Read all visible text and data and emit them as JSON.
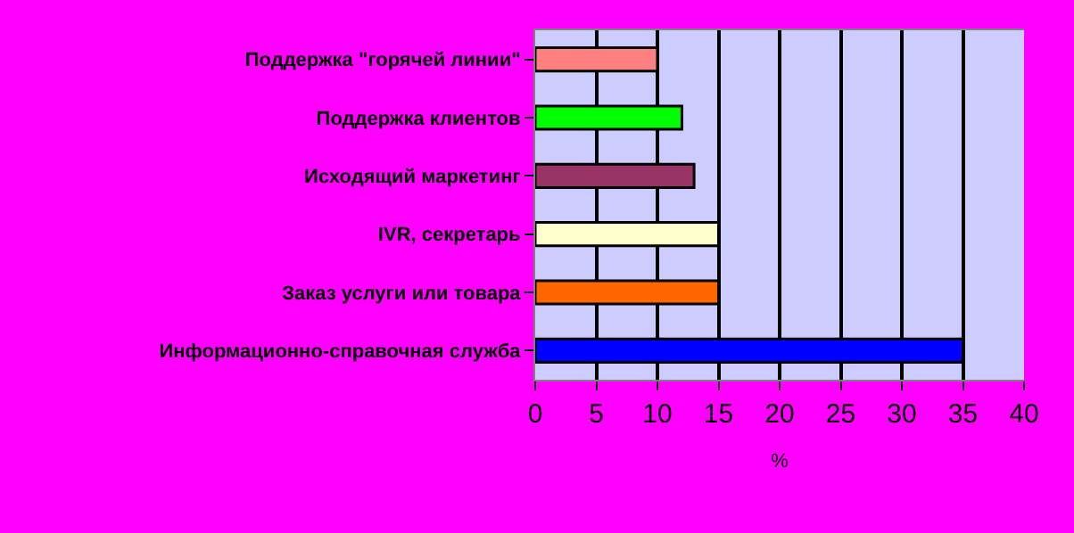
{
  "chart_data": {
    "type": "bar",
    "orientation": "horizontal",
    "categories": [
      "Поддержка \"горячей линии\"",
      "Поддержка клиентов",
      "Исходящий маркетинг",
      "IVR, секретарь",
      "Заказ услуги или товара",
      "Информационно-справочная служба"
    ],
    "values": [
      10,
      12,
      13,
      15,
      15,
      35
    ],
    "colors": [
      "#ff8080",
      "#00ff00",
      "#993366",
      "#ffffcc",
      "#ff6600",
      "#0000ff"
    ],
    "xlabel": "%",
    "xlim": [
      0,
      40
    ],
    "xticks": [
      0,
      5,
      10,
      15,
      20,
      25,
      30,
      35,
      40
    ],
    "grid": "x",
    "legend": false
  }
}
